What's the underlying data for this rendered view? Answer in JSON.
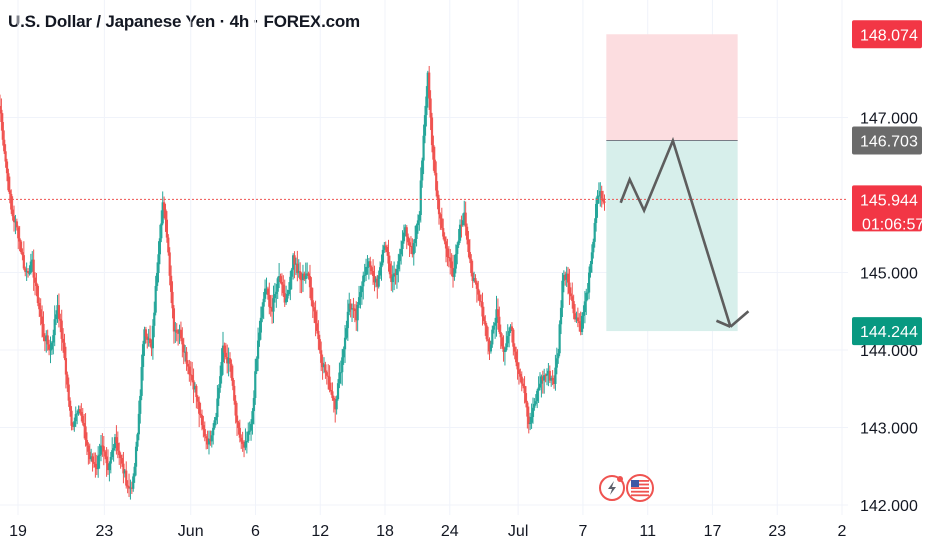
{
  "title": "U.S. Dollar / Japanese Yen · 4h · FOREX.com",
  "colors": {
    "up": "#26a69a",
    "down": "#ef5350",
    "stop_zone": "#fcdde0",
    "target_zone": "#d7efeb",
    "price_line": "#ef5350",
    "arrow": "#5d5d5d",
    "stop_badge": "#f23645",
    "entry_badge": "#6b6b6b",
    "current_badge": "#f23645",
    "target_badge": "#089981"
  },
  "icons": [
    "lightning-event-icon",
    "us-flag-icon"
  ],
  "chart_data": {
    "type": "candlestick",
    "symbol": "U.S. Dollar / Japanese Yen",
    "interval": "4h",
    "ylim": [
      142.0,
      148.5
    ],
    "y_ticks": [
      142.0,
      143.0,
      144.0,
      145.0,
      147.0
    ],
    "y_tick_labels": [
      "142.000",
      "143.000",
      "144.000",
      "145.000",
      "147.000"
    ],
    "x_ticks": [
      {
        "label": "19",
        "pos": 5
      },
      {
        "label": "23",
        "pos": 29
      },
      {
        "label": "Jun",
        "pos": 53
      },
      {
        "label": "6",
        "pos": 71
      },
      {
        "label": "12",
        "pos": 89
      },
      {
        "label": "18",
        "pos": 107
      },
      {
        "label": "24",
        "pos": 125
      },
      {
        "label": "Jul",
        "pos": 144
      },
      {
        "label": "7",
        "pos": 162
      },
      {
        "label": "11",
        "pos": 180
      },
      {
        "label": "17",
        "pos": 198
      },
      {
        "label": "23",
        "pos": 216
      },
      {
        "label": "2",
        "pos": 234
      }
    ],
    "x_range": [
      0,
      234
    ],
    "anchors": [
      [
        0,
        147.1
      ],
      [
        1,
        146.6
      ],
      [
        3,
        145.8
      ],
      [
        5,
        145.5
      ],
      [
        7,
        145.0
      ],
      [
        9,
        145.1
      ],
      [
        12,
        144.2
      ],
      [
        14,
        144.0
      ],
      [
        16,
        144.6
      ],
      [
        18,
        143.9
      ],
      [
        20,
        143.0
      ],
      [
        22,
        143.3
      ],
      [
        25,
        142.6
      ],
      [
        27,
        142.5
      ],
      [
        28,
        142.8
      ],
      [
        30,
        142.4
      ],
      [
        32,
        142.9
      ],
      [
        34,
        142.5
      ],
      [
        36,
        142.2
      ],
      [
        37,
        142.3
      ],
      [
        38,
        142.9
      ],
      [
        40,
        144.3
      ],
      [
        42,
        144.0
      ],
      [
        44,
        145.3
      ],
      [
        45,
        145.9
      ],
      [
        46,
        145.5
      ],
      [
        48,
        144.3
      ],
      [
        50,
        144.2
      ],
      [
        52,
        143.8
      ],
      [
        54,
        143.5
      ],
      [
        56,
        143.0
      ],
      [
        58,
        142.8
      ],
      [
        60,
        143.2
      ],
      [
        62,
        144.0
      ],
      [
        64,
        143.8
      ],
      [
        66,
        143.0
      ],
      [
        68,
        142.7
      ],
      [
        70,
        143.0
      ],
      [
        72,
        144.1
      ],
      [
        74,
        144.8
      ],
      [
        76,
        144.5
      ],
      [
        78,
        145.0
      ],
      [
        80,
        144.6
      ],
      [
        82,
        145.2
      ],
      [
        84,
        144.9
      ],
      [
        86,
        145.0
      ],
      [
        88,
        144.5
      ],
      [
        90,
        143.9
      ],
      [
        92,
        143.6
      ],
      [
        94,
        143.3
      ],
      [
        96,
        143.9
      ],
      [
        98,
        144.6
      ],
      [
        100,
        144.4
      ],
      [
        102,
        145.0
      ],
      [
        104,
        145.1
      ],
      [
        106,
        144.8
      ],
      [
        108,
        145.4
      ],
      [
        110,
        144.9
      ],
      [
        112,
        145.1
      ],
      [
        114,
        145.6
      ],
      [
        116,
        145.2
      ],
      [
        118,
        145.8
      ],
      [
        119,
        146.8
      ],
      [
        120,
        147.6
      ],
      [
        121,
        146.6
      ],
      [
        123,
        145.8
      ],
      [
        125,
        145.3
      ],
      [
        127,
        145.0
      ],
      [
        129,
        145.6
      ],
      [
        130,
        145.8
      ],
      [
        131,
        145.2
      ],
      [
        133,
        144.8
      ],
      [
        135,
        144.5
      ],
      [
        137,
        144.0
      ],
      [
        139,
        144.5
      ],
      [
        141,
        144.0
      ],
      [
        143,
        144.3
      ],
      [
        145,
        143.8
      ],
      [
        147,
        143.5
      ],
      [
        148,
        143.0
      ],
      [
        149,
        143.2
      ],
      [
        151,
        143.6
      ],
      [
        153,
        143.7
      ],
      [
        155,
        143.6
      ],
      [
        156,
        144.0
      ],
      [
        157,
        144.9
      ],
      [
        158,
        145.0
      ],
      [
        160,
        144.5
      ],
      [
        162,
        144.3
      ],
      [
        164,
        144.8
      ],
      [
        165,
        145.2
      ],
      [
        166,
        145.9
      ],
      [
        167,
        146.0
      ],
      [
        168,
        145.9
      ]
    ],
    "current_price": 145.944,
    "countdown": "01:06:57",
    "position": {
      "type": "short",
      "x_start": 168.5,
      "x_end": 205,
      "stop": 148.074,
      "entry": 146.703,
      "target": 144.244
    },
    "projection_path": [
      [
        172.5,
        145.9
      ],
      [
        175,
        146.2
      ],
      [
        179,
        145.8
      ],
      [
        187,
        146.7
      ],
      [
        203,
        144.3
      ]
    ],
    "projection_path_end": [
      208,
      144.5
    ],
    "price_labels": {
      "stop": "148.074",
      "entry": "146.703",
      "current": "145.944",
      "target": "144.244"
    }
  }
}
